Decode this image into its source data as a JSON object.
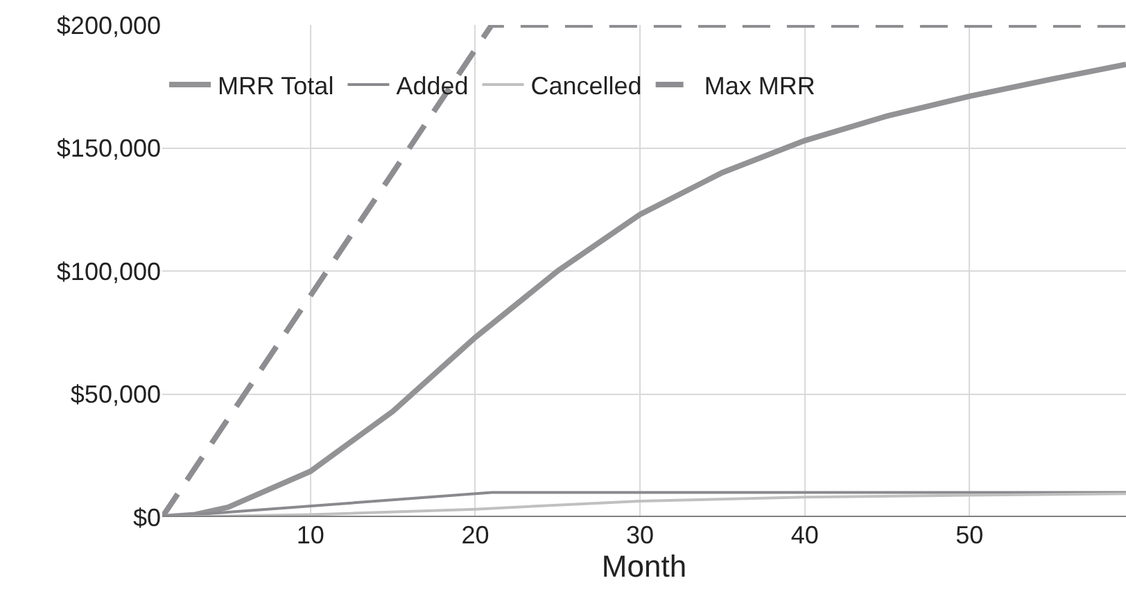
{
  "chart_data": {
    "type": "line",
    "xlabel": "Month",
    "xlim": [
      1,
      59.5
    ],
    "xticks": [
      10,
      20,
      30,
      40,
      50
    ],
    "ylim": [
      0,
      200000
    ],
    "yticks": [
      {
        "value": 0,
        "label": "$0"
      },
      {
        "value": 50000,
        "label": "$50,000"
      },
      {
        "value": 100000,
        "label": "$100,000"
      },
      {
        "value": 150000,
        "label": "$150,000"
      },
      {
        "value": 200000,
        "label": "$200,000"
      }
    ],
    "grid": true,
    "legend": "top left",
    "series": [
      {
        "name": "MRR Total",
        "color": "#939396",
        "x": [
          1,
          3,
          5,
          10,
          15,
          20,
          25,
          30,
          35,
          40,
          45,
          50,
          55,
          59.5
        ],
        "values": [
          0,
          1000,
          4000,
          18600,
          43000,
          73000,
          100000,
          123000,
          140000,
          153000,
          163000,
          171000,
          178000,
          184000
        ]
      },
      {
        "name": "Added",
        "color": "#8a8a8e",
        "x": [
          1,
          21,
          59.5
        ],
        "values": [
          0,
          10000,
          10000
        ]
      },
      {
        "name": "Cancelled",
        "color": "#c0c0c0",
        "x": [
          1,
          10,
          20,
          30,
          40,
          50,
          59.5
        ],
        "values": [
          0,
          1000,
          3200,
          6500,
          8100,
          8900,
          9500
        ]
      },
      {
        "name": "Max MRR",
        "color": "#8e8e92",
        "line_style": "dashed",
        "x": [
          1,
          21,
          59.5
        ],
        "values": [
          0,
          200000,
          200000
        ]
      }
    ]
  }
}
